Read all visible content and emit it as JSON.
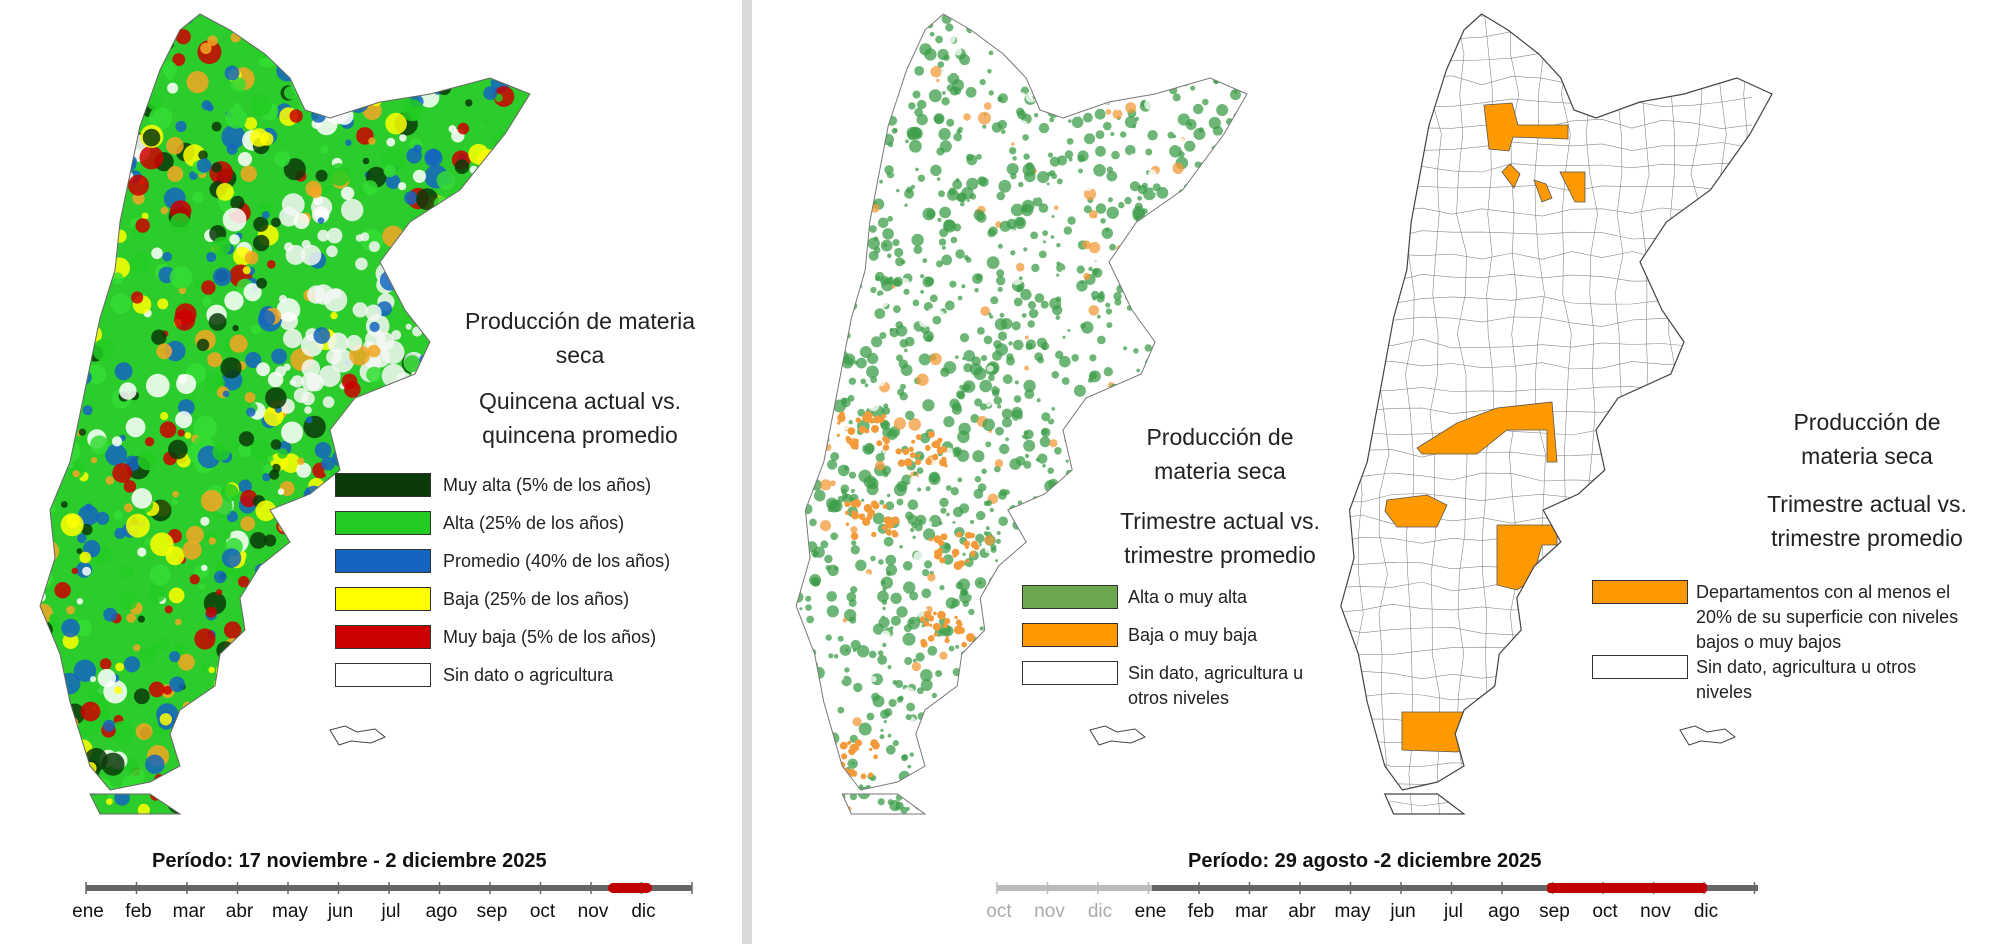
{
  "left": {
    "title_line1": "Producción de materia",
    "title_line2": "seca",
    "subtitle_line1": "Quincena actual vs.",
    "subtitle_line2": "quincena  promedio",
    "legend": [
      {
        "label": "Muy alta (5% de los años)",
        "color": "#0b3a0b"
      },
      {
        "label": "Alta (25% de los años)",
        "color": "#22cc22"
      },
      {
        "label": "Promedio (40% de los años)",
        "color": "#1565c0"
      },
      {
        "label": "Baja (25% de los años)",
        "color": "#ffff00"
      },
      {
        "label": "Muy baja (5% de los años)",
        "color": "#cc0000"
      },
      {
        "label": "Sin dato o agricultura",
        "color": "#ffffff"
      }
    ],
    "period": "Período:  17 noviembre  - 2 diciembre 2025",
    "months": [
      "ene",
      "feb",
      "mar",
      "abr",
      "may",
      "jun",
      "jul",
      "ago",
      "sep",
      "oct",
      "nov",
      "dic"
    ],
    "highlight_color": "#c00000"
  },
  "middle": {
    "title_line1": "Producción de",
    "title_line2": "materia seca",
    "subtitle_line1": "Trimestre actual vs.",
    "subtitle_line2": "trimestre promedio",
    "legend": [
      {
        "label": "Alta o muy alta",
        "color": "#6aa84f"
      },
      {
        "label": "Baja o muy baja",
        "color": "#ff9900"
      },
      {
        "label": "Sin dato, agricultura u",
        "label2": "otros niveles",
        "color": "#ffffff"
      }
    ]
  },
  "right": {
    "title_line1": "Producción de",
    "title_line2": "materia seca",
    "subtitle_line1": "Trimestre actual vs.",
    "subtitle_line2": "trimestre promedio",
    "legend": [
      {
        "label": "Departamentos con al menos el",
        "label2": "20% de su superficie con niveles",
        "label3": "bajos o muy bajos",
        "color": "#ff9900"
      },
      {
        "label": "Sin dato, agricultura u otros",
        "label2": "niveles",
        "color": "#ffffff"
      }
    ]
  },
  "bottom_right": {
    "period": "Período:  29 agosto -2 diciembre 2025",
    "months_prev": [
      "oct",
      "nov",
      "dic"
    ],
    "months": [
      "ene",
      "feb",
      "mar",
      "abr",
      "may",
      "jun",
      "jul",
      "ago",
      "sep",
      "oct",
      "nov",
      "dic"
    ],
    "highlight_color": "#c00000"
  }
}
